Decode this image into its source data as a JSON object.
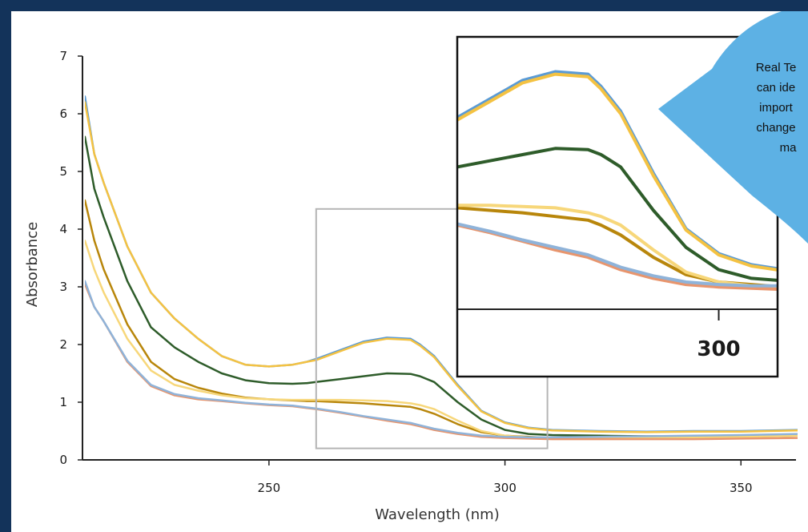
{
  "chart_data": {
    "type": "line",
    "title": "",
    "xlabel": "Wavelength (nm)",
    "ylabel": "Absorbance",
    "xlim": [
      211,
      362
    ],
    "ylim": [
      0,
      7
    ],
    "x_ticks": [
      250,
      300,
      350
    ],
    "y_ticks": [
      0,
      1,
      2,
      3,
      4,
      5,
      6,
      7
    ],
    "grid": false,
    "legend": "none",
    "x": [
      211,
      213,
      215,
      220,
      225,
      230,
      235,
      240,
      245,
      250,
      255,
      258,
      260,
      265,
      270,
      275,
      280,
      282,
      285,
      290,
      295,
      300,
      305,
      310,
      320,
      330,
      340,
      350,
      362
    ],
    "series": [
      {
        "color": "#5b9bd5",
        "values": [
          6.3,
          5.3,
          4.8,
          3.7,
          2.9,
          2.45,
          2.1,
          1.8,
          1.65,
          1.62,
          1.65,
          1.7,
          1.75,
          1.9,
          2.05,
          2.12,
          2.1,
          2.0,
          1.8,
          1.3,
          0.85,
          0.65,
          0.56,
          0.52,
          0.5,
          0.49,
          0.5,
          0.5,
          0.52
        ]
      },
      {
        "color": "#f4c242",
        "values": [
          6.2,
          5.3,
          4.8,
          3.7,
          2.9,
          2.45,
          2.1,
          1.8,
          1.65,
          1.62,
          1.65,
          1.7,
          1.73,
          1.88,
          2.03,
          2.1,
          2.08,
          1.98,
          1.78,
          1.28,
          0.84,
          0.64,
          0.55,
          0.51,
          0.49,
          0.48,
          0.49,
          0.49,
          0.51
        ]
      },
      {
        "color": "#2e5c2a",
        "values": [
          5.6,
          4.7,
          4.2,
          3.1,
          2.3,
          1.95,
          1.7,
          1.5,
          1.38,
          1.33,
          1.32,
          1.33,
          1.35,
          1.4,
          1.45,
          1.5,
          1.49,
          1.45,
          1.35,
          1.0,
          0.7,
          0.52,
          0.45,
          0.43,
          0.42,
          0.41,
          0.41,
          0.42,
          0.44
        ]
      },
      {
        "color": "#b8860b",
        "values": [
          4.5,
          3.8,
          3.3,
          2.35,
          1.7,
          1.4,
          1.25,
          1.15,
          1.08,
          1.05,
          1.03,
          1.02,
          1.02,
          1.0,
          0.98,
          0.95,
          0.92,
          0.88,
          0.8,
          0.62,
          0.48,
          0.42,
          0.4,
          0.38,
          0.38,
          0.38,
          0.39,
          0.4,
          0.42
        ]
      },
      {
        "color": "#f7d77a",
        "values": [
          3.8,
          3.3,
          2.9,
          2.1,
          1.55,
          1.3,
          1.2,
          1.12,
          1.07,
          1.05,
          1.04,
          1.04,
          1.04,
          1.04,
          1.03,
          1.02,
          0.98,
          0.95,
          0.88,
          0.68,
          0.5,
          0.42,
          0.39,
          0.38,
          0.38,
          0.38,
          0.39,
          0.4,
          0.42
        ]
      },
      {
        "color": "#e8956d",
        "values": [
          3.05,
          2.65,
          2.4,
          1.7,
          1.28,
          1.12,
          1.05,
          1.02,
          0.98,
          0.95,
          0.93,
          0.9,
          0.88,
          0.82,
          0.75,
          0.68,
          0.62,
          0.58,
          0.52,
          0.45,
          0.4,
          0.38,
          0.37,
          0.36,
          0.36,
          0.36,
          0.36,
          0.37,
          0.38
        ]
      },
      {
        "color": "#8fb3d9",
        "values": [
          3.1,
          2.65,
          2.4,
          1.72,
          1.3,
          1.14,
          1.07,
          1.03,
          0.99,
          0.96,
          0.94,
          0.91,
          0.89,
          0.83,
          0.76,
          0.7,
          0.64,
          0.6,
          0.54,
          0.47,
          0.42,
          0.4,
          0.39,
          0.39,
          0.4,
          0.41,
          0.42,
          0.43,
          0.45
        ]
      }
    ],
    "zoom_region": {
      "xlim": [
        260,
        309
      ],
      "ylim": [
        0.2,
        4.35
      ]
    },
    "inset": {
      "xlim": [
        260,
        309
      ],
      "ylim": [
        0.2,
        2.35
      ],
      "x_tick": 300
    },
    "callout": {
      "text_lines": [
        "Real Te",
        "can ide",
        "import",
        "change",
        "ma"
      ]
    }
  },
  "colors": {
    "page_background": "#13335a",
    "panel_background": "#ffffff",
    "callout_fill": "#5db1e4",
    "zoom_box": "#b5b5b5"
  }
}
